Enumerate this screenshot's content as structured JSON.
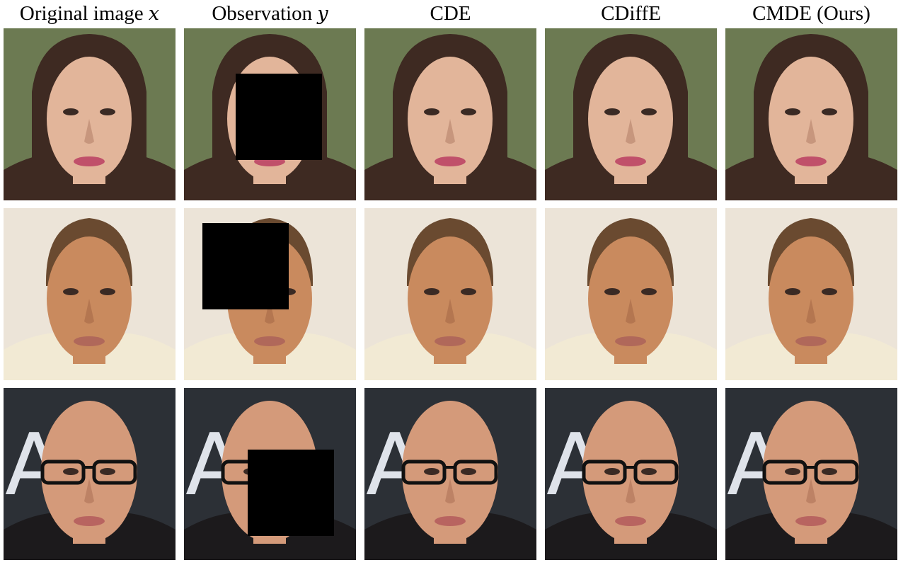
{
  "columns": [
    {
      "label": "Original image",
      "var": "x"
    },
    {
      "label": "Observation",
      "var": "y"
    },
    {
      "label": "CDE",
      "var": ""
    },
    {
      "label": "CDiffE",
      "var": ""
    },
    {
      "label": "CMDE (Ours)",
      "var": ""
    }
  ],
  "rows": [
    {
      "id": "woman",
      "bg": "#6c7a52",
      "skin": "#e2b59a",
      "hair": "#3e2a22",
      "lips": "#c0506a",
      "clothes": "#3e2a22"
    },
    {
      "id": "man",
      "bg": "#ece4d8",
      "skin": "#c98a5e",
      "hair": "#6a4a30",
      "lips": "#b0685a",
      "clothes": "#f2ead4"
    },
    {
      "id": "bald-man",
      "bg": "#2c3036",
      "skin": "#d49a7a",
      "hair": "#d49a7a",
      "lips": "#b86460",
      "clothes": "#1c1a1c"
    }
  ]
}
